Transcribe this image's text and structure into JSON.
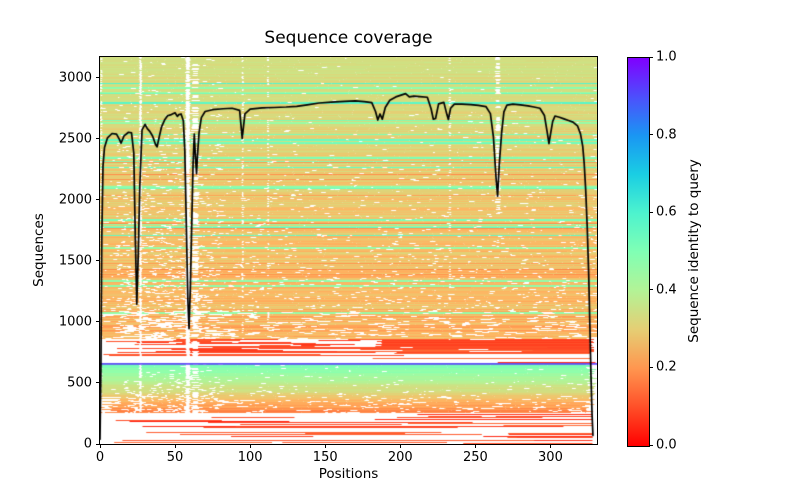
{
  "figure": {
    "title": "Sequence coverage",
    "xlabel": "Positions",
    "ylabel": "Sequences",
    "colorbar_label": "Sequence identity to query"
  },
  "chart_data": {
    "type": "heatmap",
    "title": "Sequence coverage",
    "xlabel": "Positions",
    "ylabel": "Sequences",
    "xlim": [
      0,
      331
    ],
    "ylim": [
      0,
      3172
    ],
    "x_ticks": [
      0,
      50,
      100,
      150,
      200,
      250,
      300
    ],
    "y_ticks": [
      0,
      500,
      1000,
      1500,
      2000,
      2500,
      3000
    ],
    "grid": false,
    "total_sequences": 3170,
    "query_length": 331,
    "colorbar": {
      "label": "Sequence identity to query",
      "cmap": "rainbow_r",
      "range": [
        0.0,
        1.0
      ],
      "tick_labels": [
        "0.0",
        "0.2",
        "0.4",
        "0.6",
        "0.8",
        "1.0"
      ],
      "tick_values": [
        0,
        0.2,
        0.4,
        0.6,
        0.8,
        1.0
      ]
    },
    "msa_bands": [
      {
        "name": "background-noise",
        "seq_range": [
          2,
          256
        ],
        "identity_range": [
          0.04,
          0.14
        ],
        "fill": "sparse-segments",
        "row_fill_prob": 0.6
      },
      {
        "name": "lower-cluster",
        "seq_range": [
          258,
          654
        ],
        "identity_bottom": 0.17,
        "identity_top": 0.52,
        "fill": "near-full-with-gaps",
        "end_pos_range": [
          323,
          331
        ]
      },
      {
        "name": "query-like-hit",
        "seq_range": [
          658,
          668
        ],
        "identity": 0.93,
        "fill": "full-width-line"
      },
      {
        "name": "low-identity-band",
        "seq_range": [
          668,
          856
        ],
        "identity_range": [
          0.05,
          0.17
        ],
        "fill": "partial",
        "solid_right_block": {
          "seq_range": [
            795,
            852
          ],
          "pos_range": [
            188,
            330
          ],
          "identity": 0.09
        }
      },
      {
        "name": "main-cluster",
        "seq_range": [
          858,
          3172
        ],
        "identity_bottom": 0.245,
        "identity_top": 0.34,
        "green_stripes": {
          "count": 26,
          "identity_range": [
            0.44,
            0.6
          ]
        },
        "orange_stripes": {
          "count": 9,
          "identity_range": [
            0.17,
            0.22
          ]
        },
        "fill": "full-with-speckled-gaps"
      }
    ],
    "white_columns": [
      {
        "pos": 0.9,
        "width": 1.2,
        "density": 0.45,
        "seq_range": [
          258,
          3172
        ]
      },
      {
        "pos": 27,
        "width": 1.8,
        "density": 0.85,
        "seq_range": [
          258,
          3172
        ]
      },
      {
        "pos": 58.5,
        "width": 3.2,
        "density": 0.9,
        "seq_range": [
          258,
          3172
        ]
      },
      {
        "pos": 63.5,
        "width": 5.0,
        "density": 0.45,
        "seq_range": [
          258,
          3172
        ]
      },
      {
        "pos": 95,
        "width": 1.4,
        "density": 0.3,
        "seq_range": [
          858,
          3172
        ]
      },
      {
        "pos": 112,
        "width": 1.4,
        "density": 0.28,
        "seq_range": [
          858,
          3172
        ]
      },
      {
        "pos": 233,
        "width": 1.6,
        "density": 0.22,
        "seq_range": [
          858,
          3172
        ]
      },
      {
        "pos": 265,
        "width": 3.5,
        "density": 0.55,
        "seq_range": [
          1900,
          3172
        ]
      }
    ],
    "coverage_line": {
      "name": "per-position sequence count",
      "color": "#000000",
      "points": [
        [
          0,
          40
        ],
        [
          0.6,
          600
        ],
        [
          1.2,
          1700
        ],
        [
          2,
          2280
        ],
        [
          3,
          2430
        ],
        [
          5,
          2510
        ],
        [
          8,
          2545
        ],
        [
          11,
          2540
        ],
        [
          13,
          2495
        ],
        [
          14,
          2465
        ],
        [
          16,
          2525
        ],
        [
          19,
          2555
        ],
        [
          21,
          2550
        ],
        [
          22.5,
          2385
        ],
        [
          23.5,
          1700
        ],
        [
          24.5,
          1145
        ],
        [
          25.5,
          1560
        ],
        [
          26.5,
          2110
        ],
        [
          28,
          2575
        ],
        [
          30,
          2620
        ],
        [
          31.5,
          2585
        ],
        [
          33,
          2565
        ],
        [
          35,
          2525
        ],
        [
          37,
          2455
        ],
        [
          38,
          2435
        ],
        [
          39.5,
          2520
        ],
        [
          41,
          2600
        ],
        [
          43,
          2655
        ],
        [
          45,
          2690
        ],
        [
          47.5,
          2700
        ],
        [
          50,
          2715
        ],
        [
          51.5,
          2685
        ],
        [
          52.5,
          2700
        ],
        [
          54,
          2705
        ],
        [
          55.5,
          2650
        ],
        [
          56.5,
          2395
        ],
        [
          57.5,
          1790
        ],
        [
          58.5,
          1185
        ],
        [
          59.3,
          945
        ],
        [
          60.2,
          1290
        ],
        [
          61,
          1745
        ],
        [
          62,
          2300
        ],
        [
          62.8,
          2540
        ],
        [
          63.6,
          2345
        ],
        [
          64.3,
          2215
        ],
        [
          65,
          2380
        ],
        [
          66,
          2555
        ],
        [
          67.5,
          2675
        ],
        [
          70,
          2725
        ],
        [
          75,
          2740
        ],
        [
          82,
          2748
        ],
        [
          88,
          2752
        ],
        [
          93,
          2735
        ],
        [
          94.7,
          2505
        ],
        [
          96.5,
          2705
        ],
        [
          100,
          2745
        ],
        [
          108,
          2755
        ],
        [
          116,
          2758
        ],
        [
          124,
          2762
        ],
        [
          131,
          2768
        ],
        [
          138,
          2780
        ],
        [
          146,
          2795
        ],
        [
          154,
          2802
        ],
        [
          163,
          2808
        ],
        [
          170,
          2812
        ],
        [
          176,
          2806
        ],
        [
          181,
          2798
        ],
        [
          183.5,
          2725
        ],
        [
          185,
          2655
        ],
        [
          186.5,
          2705
        ],
        [
          188,
          2662
        ],
        [
          190,
          2758
        ],
        [
          193,
          2818
        ],
        [
          197,
          2845
        ],
        [
          201,
          2862
        ],
        [
          203.5,
          2872
        ],
        [
          206,
          2845
        ],
        [
          209,
          2852
        ],
        [
          213,
          2848
        ],
        [
          218,
          2842
        ],
        [
          220.5,
          2748
        ],
        [
          222,
          2662
        ],
        [
          223.5,
          2668
        ],
        [
          225.5,
          2788
        ],
        [
          229,
          2800
        ],
        [
          231,
          2702
        ],
        [
          232,
          2660
        ],
        [
          233.5,
          2752
        ],
        [
          236,
          2786
        ],
        [
          241,
          2786
        ],
        [
          247,
          2782
        ],
        [
          252,
          2775
        ],
        [
          257,
          2766
        ],
        [
          260,
          2708
        ],
        [
          262,
          2518
        ],
        [
          263.8,
          2175
        ],
        [
          264.8,
          2032
        ],
        [
          266,
          2308
        ],
        [
          267.5,
          2552
        ],
        [
          269,
          2722
        ],
        [
          271,
          2778
        ],
        [
          275,
          2786
        ],
        [
          280,
          2780
        ],
        [
          285,
          2772
        ],
        [
          289,
          2762
        ],
        [
          293,
          2752
        ],
        [
          296,
          2692
        ],
        [
          297.8,
          2558
        ],
        [
          299,
          2462
        ],
        [
          300.3,
          2558
        ],
        [
          301.5,
          2645
        ],
        [
          303,
          2688
        ],
        [
          306,
          2678
        ],
        [
          309,
          2665
        ],
        [
          312,
          2652
        ],
        [
          315,
          2638
        ],
        [
          318,
          2608
        ],
        [
          320,
          2542
        ],
        [
          321.5,
          2440
        ],
        [
          322.5,
          2295
        ],
        [
          323.5,
          2075
        ],
        [
          324.5,
          1775
        ],
        [
          325.5,
          1375
        ],
        [
          326.3,
          945
        ],
        [
          327,
          555
        ],
        [
          327.7,
          245
        ],
        [
          328.3,
          70
        ]
      ]
    },
    "render_seed": 1337
  }
}
